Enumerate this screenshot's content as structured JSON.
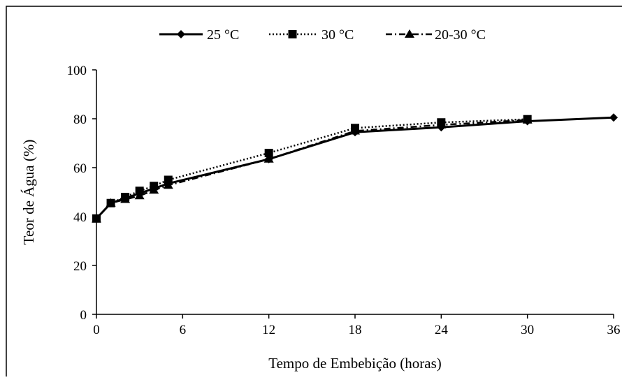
{
  "chart_data": {
    "type": "line",
    "title": "",
    "xlabel": "Tempo de Embebição (horas)",
    "ylabel": "Teor de Água (%)",
    "xlim": [
      0,
      36
    ],
    "ylim": [
      0,
      100
    ],
    "xticks": [
      0,
      6,
      12,
      18,
      24,
      30,
      36
    ],
    "yticks": [
      0,
      20,
      40,
      60,
      80,
      100
    ],
    "grid": false,
    "legend_position": "top",
    "series": [
      {
        "name": "25 °C",
        "line_style": "solid",
        "marker": "diamond",
        "color": "#000000",
        "x": [
          0,
          1,
          2,
          3,
          4,
          5,
          12,
          18,
          24,
          30,
          36
        ],
        "y": [
          39.2,
          45.5,
          47.5,
          49.5,
          51.5,
          53.5,
          63.5,
          74.5,
          76.5,
          79,
          80.5
        ]
      },
      {
        "name": "30 °C",
        "line_style": "dotted",
        "marker": "square",
        "color": "#000000",
        "x": [
          0,
          1,
          2,
          3,
          4,
          5,
          12,
          18,
          24,
          30
        ],
        "y": [
          39.2,
          45.5,
          48,
          50.5,
          52.5,
          55,
          66,
          76.2,
          78.5,
          79.8
        ]
      },
      {
        "name": "20-30 °C",
        "line_style": "dash-dot",
        "marker": "triangle",
        "color": "#000000",
        "x": [
          0,
          1,
          2,
          3,
          4,
          5,
          12,
          18,
          24,
          30
        ],
        "y": [
          39,
          45.5,
          47,
          48.5,
          50.8,
          52.8,
          63.5,
          75,
          77.5,
          79.5
        ]
      }
    ]
  }
}
